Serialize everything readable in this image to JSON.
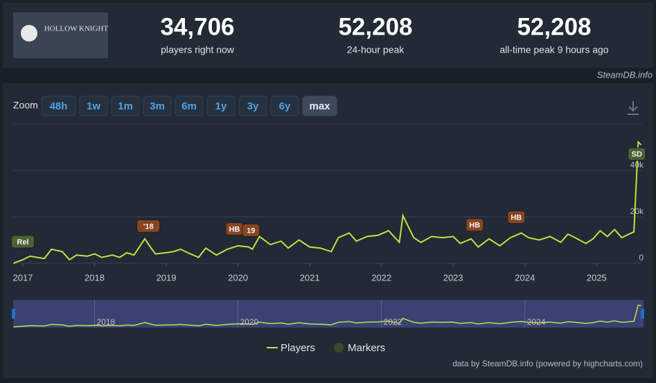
{
  "header": {
    "logo_text": "HOLLOW KNIGHT",
    "stats": [
      {
        "value": "34,706",
        "label": "players right now"
      },
      {
        "value": "52,208",
        "label": "24-hour peak"
      },
      {
        "value": "52,208",
        "label": "all-time peak 9 hours ago"
      }
    ],
    "credit": "SteamDB.info"
  },
  "zoom": {
    "label": "Zoom",
    "buttons": [
      "48h",
      "1w",
      "1m",
      "3m",
      "6m",
      "1y",
      "3y",
      "6y",
      "max"
    ],
    "selected": "max"
  },
  "chart_data": {
    "type": "line",
    "x": [
      2016.87,
      2017.0,
      2017.1,
      2017.2,
      2017.3,
      2017.4,
      2017.55,
      2017.65,
      2017.75,
      2017.9,
      2018.0,
      2018.1,
      2018.25,
      2018.35,
      2018.45,
      2018.55,
      2018.7,
      2018.8,
      2018.85,
      2019.0,
      2019.1,
      2019.2,
      2019.3,
      2019.45,
      2019.55,
      2019.7,
      2019.85,
      2020.0,
      2020.15,
      2020.2,
      2020.3,
      2020.45,
      2020.6,
      2020.7,
      2020.85,
      2021.0,
      2021.15,
      2021.3,
      2021.4,
      2021.55,
      2021.65,
      2021.8,
      2021.95,
      2022.1,
      2022.25,
      2022.3,
      2022.45,
      2022.55,
      2022.7,
      2022.85,
      2023.0,
      2023.1,
      2023.25,
      2023.35,
      2023.5,
      2023.65,
      2023.8,
      2023.95,
      2024.05,
      2024.2,
      2024.35,
      2024.5,
      2024.6,
      2024.7,
      2024.85,
      2024.95,
      2025.05,
      2025.15,
      2025.25,
      2025.35,
      2025.45,
      2025.52,
      2025.58,
      2025.62
    ],
    "series": [
      {
        "name": "Players",
        "color": "#c3e146",
        "values": [
          0,
          1500,
          3000,
          2500,
          2000,
          6000,
          5000,
          1500,
          3500,
          3000,
          4000,
          2500,
          3500,
          2500,
          4500,
          3500,
          10500,
          6000,
          4000,
          4500,
          5000,
          6000,
          4500,
          2500,
          6500,
          3500,
          6000,
          7500,
          7000,
          6000,
          11500,
          8000,
          9500,
          6500,
          10000,
          7000,
          6500,
          5000,
          11000,
          13000,
          9500,
          11500,
          12000,
          14000,
          9000,
          20500,
          11000,
          9000,
          11500,
          11000,
          11500,
          8500,
          10500,
          7000,
          10500,
          7500,
          11000,
          13000,
          11000,
          10000,
          11500,
          9000,
          12500,
          11000,
          8500,
          10500,
          14000,
          11500,
          14500,
          11000,
          12500,
          13500,
          52208,
          51000
        ]
      }
    ],
    "markers_name": "Markers",
    "markers_color": "#3a4a2a",
    "markers": [
      {
        "label": "Rel",
        "x": 2017.0,
        "color": "#4a6136"
      },
      {
        "label": "'18",
        "x": 2018.75,
        "color": "#8a4421"
      },
      {
        "label": "HB",
        "x": 2019.95,
        "color": "#8a4421"
      },
      {
        "label": "19",
        "x": 2020.18,
        "color": "#8a4421"
      },
      {
        "label": "HB",
        "x": 2023.3,
        "color": "#8a4421"
      },
      {
        "label": "HB",
        "x": 2023.88,
        "color": "#8a4421"
      },
      {
        "label": "SD",
        "x": 2025.56,
        "color": "#4a6136"
      }
    ],
    "xlim": [
      2016.87,
      2025.63
    ],
    "xticks": [
      2017,
      2018,
      2019,
      2020,
      2021,
      2022,
      2023,
      2024,
      2025
    ],
    "ylim": [
      0,
      60000
    ],
    "yticks": [
      {
        "value": 0,
        "label": "0"
      },
      {
        "value": 20000,
        "label": "20k"
      },
      {
        "value": 40000,
        "label": "40k"
      }
    ],
    "navigator_xticks": [
      2018,
      2020,
      2022,
      2024
    ],
    "credits": "data by SteamDB.info (powered by highcharts.com)"
  }
}
